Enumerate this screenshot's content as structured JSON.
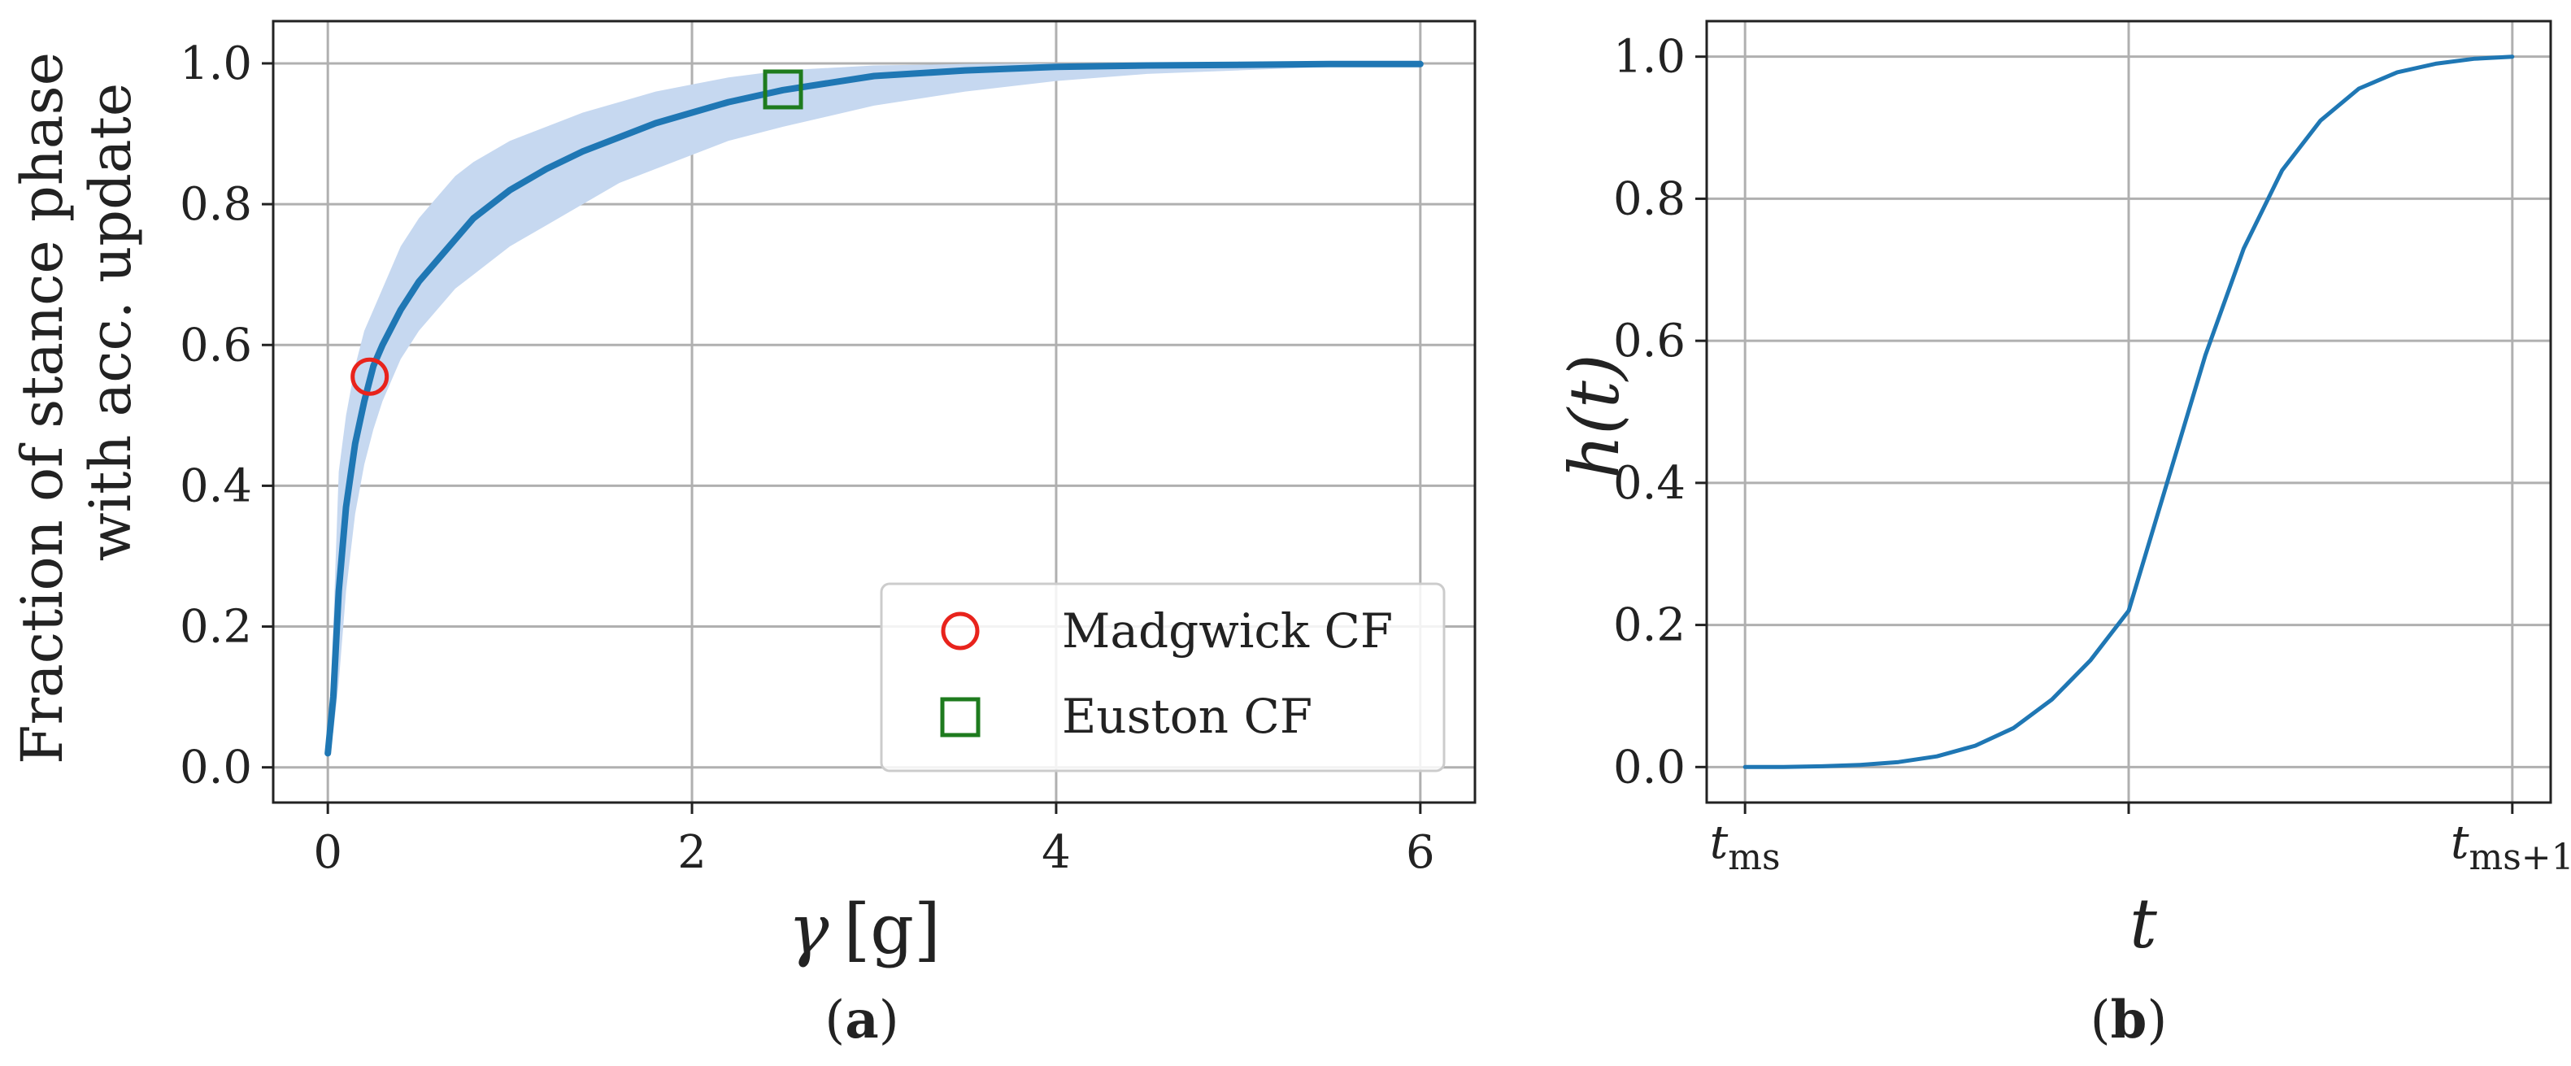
{
  "chart_data": [
    {
      "type": "line",
      "panel": "a",
      "caption_letter": "a",
      "xlabel_symbol": "γ",
      "xlabel_unit": "[g]",
      "ylabel_line1": "Fraction of stance phase",
      "ylabel_line2": "with acc. update",
      "xlim": [
        -0.3,
        6.3
      ],
      "ylim": [
        -0.05,
        1.06
      ],
      "x_ticks": [
        0,
        2,
        4,
        6
      ],
      "x_tick_labels": [
        "0",
        "2",
        "4",
        "6"
      ],
      "y_ticks": [
        0.0,
        0.2,
        0.4,
        0.6,
        0.8,
        1.0
      ],
      "y_tick_labels": [
        "0.0",
        "0.2",
        "0.4",
        "0.6",
        "0.8",
        "1.0"
      ],
      "grid": true,
      "legend_position": "lower-right",
      "colors": {
        "mean": "#1f77b4",
        "band": "#c6d8f0",
        "madgwick": "#e8231c",
        "euston": "#1e7b1e",
        "grid": "#b0b0b0",
        "axis": "#222222"
      },
      "series": [
        {
          "name": "mean",
          "x": [
            0,
            0.03,
            0.06,
            0.1,
            0.15,
            0.2,
            0.25,
            0.3,
            0.4,
            0.5,
            0.6,
            0.7,
            0.8,
            1.0,
            1.2,
            1.4,
            1.6,
            1.8,
            2.0,
            2.2,
            2.5,
            3.0,
            3.5,
            4.0,
            4.5,
            5.0,
            5.5,
            6.0
          ],
          "y": [
            0.02,
            0.1,
            0.25,
            0.37,
            0.46,
            0.52,
            0.57,
            0.6,
            0.65,
            0.69,
            0.72,
            0.75,
            0.78,
            0.82,
            0.85,
            0.875,
            0.895,
            0.915,
            0.93,
            0.945,
            0.962,
            0.982,
            0.99,
            0.995,
            0.997,
            0.998,
            0.999,
            0.999
          ]
        },
        {
          "name": "band_upper",
          "x": [
            0,
            0.03,
            0.06,
            0.1,
            0.15,
            0.2,
            0.25,
            0.3,
            0.4,
            0.5,
            0.6,
            0.7,
            0.8,
            1.0,
            1.2,
            1.4,
            1.6,
            1.8,
            2.0,
            2.2,
            2.5,
            3.0,
            3.5,
            4.0,
            4.5,
            5.0,
            5.5,
            6.0
          ],
          "y": [
            0.02,
            0.2,
            0.42,
            0.5,
            0.57,
            0.62,
            0.65,
            0.68,
            0.74,
            0.78,
            0.81,
            0.84,
            0.86,
            0.89,
            0.91,
            0.93,
            0.945,
            0.96,
            0.97,
            0.98,
            0.99,
            0.997,
            0.999,
            1.0,
            1.0,
            1.0,
            1.0,
            1.0
          ]
        },
        {
          "name": "band_lower",
          "x": [
            0,
            0.03,
            0.06,
            0.1,
            0.15,
            0.2,
            0.25,
            0.3,
            0.4,
            0.5,
            0.6,
            0.7,
            0.8,
            1.0,
            1.2,
            1.4,
            1.6,
            1.8,
            2.0,
            2.2,
            2.5,
            3.0,
            3.5,
            4.0,
            4.5,
            5.0,
            5.5,
            6.0
          ],
          "y": [
            0.02,
            0.05,
            0.12,
            0.25,
            0.36,
            0.43,
            0.48,
            0.52,
            0.58,
            0.62,
            0.65,
            0.68,
            0.7,
            0.74,
            0.77,
            0.8,
            0.83,
            0.85,
            0.87,
            0.89,
            0.91,
            0.94,
            0.96,
            0.975,
            0.985,
            0.99,
            0.995,
            0.998
          ]
        }
      ],
      "markers": [
        {
          "name": "Madgwick CF",
          "shape": "circle",
          "x": 0.23,
          "y": 0.555
        },
        {
          "name": "Euston CF",
          "shape": "square",
          "x": 2.5,
          "y": 0.963
        }
      ],
      "legend": [
        {
          "label": "Madgwick CF",
          "shape": "circle"
        },
        {
          "label": "Euston CF",
          "shape": "square"
        }
      ]
    },
    {
      "type": "line",
      "panel": "b",
      "caption_letter": "b",
      "xlabel_symbol": "t",
      "ylabel_symbol": "h(t)",
      "xlim": [
        -0.1,
        2.1
      ],
      "ylim": [
        -0.05,
        1.05
      ],
      "x_ticks": [
        0,
        1,
        2
      ],
      "x_tick_labels": [
        {
          "main": "t",
          "sub": "ms"
        },
        {
          "main": "",
          "sub": ""
        },
        {
          "main": "t",
          "sub": "ms+1"
        }
      ],
      "y_ticks": [
        0.0,
        0.2,
        0.4,
        0.6,
        0.8,
        1.0
      ],
      "y_tick_labels": [
        "0.0",
        "0.2",
        "0.4",
        "0.6",
        "0.8",
        "1.0"
      ],
      "grid": true,
      "colors": {
        "line": "#1f77b4",
        "grid": "#b0b0b0",
        "axis": "#222222"
      },
      "series": [
        {
          "name": "h(t)",
          "x": [
            0,
            0.1,
            0.2,
            0.3,
            0.4,
            0.5,
            0.6,
            0.7,
            0.8,
            0.9,
            1.0,
            1.1,
            1.2,
            1.3,
            1.4,
            1.5,
            1.6,
            1.7,
            1.8,
            1.9,
            2.0
          ],
          "y": [
            0.0,
            0.0,
            0.001,
            0.003,
            0.007,
            0.015,
            0.03,
            0.055,
            0.095,
            0.15,
            0.22,
            0.4,
            0.58,
            0.73,
            0.84,
            0.91,
            0.955,
            0.978,
            0.99,
            0.997,
            1.0
          ]
        }
      ]
    }
  ]
}
